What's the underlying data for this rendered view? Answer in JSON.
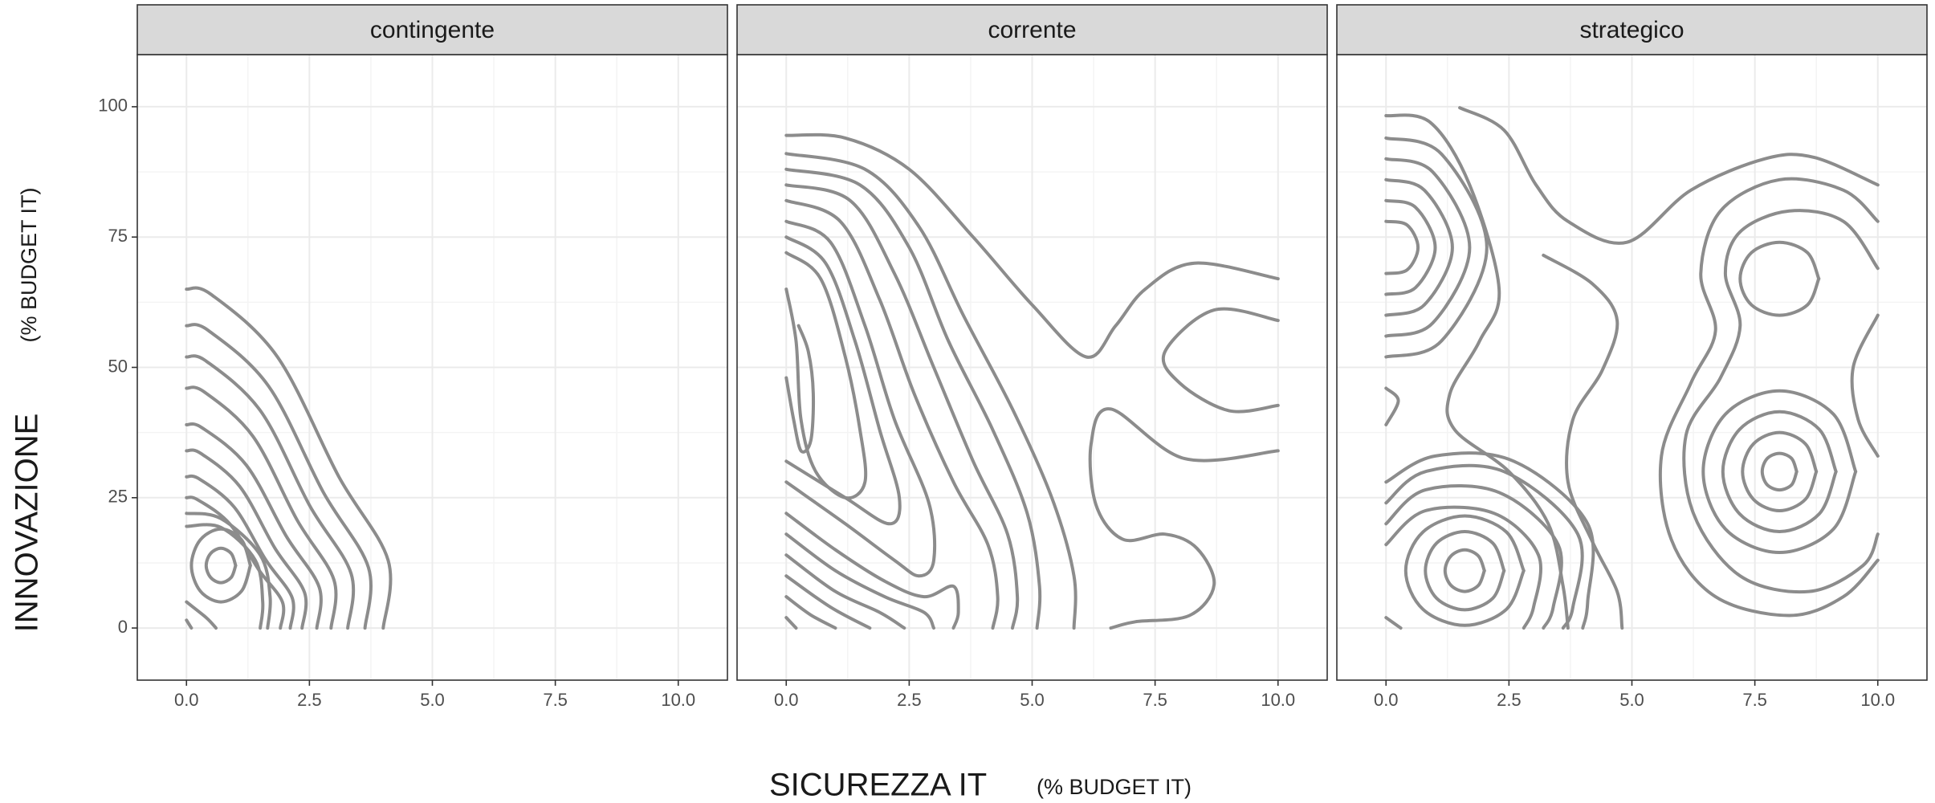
{
  "x_label": "SICUREZZA IT",
  "x_label_unit": "(% BUDGET IT)",
  "y_label": "INNOVAZIONE",
  "y_label_unit": "(% BUDGET IT)",
  "chart_data": [
    {
      "type": "contour",
      "title": "contingente",
      "color": "#8c8c8c",
      "grid": true,
      "xlim": [
        -1,
        11
      ],
      "ylim": [
        -10,
        110
      ],
      "xticks": [
        {
          "value": 0,
          "label": "0.0"
        },
        {
          "value": 2.5,
          "label": "2.5"
        },
        {
          "value": 5,
          "label": "5.0"
        },
        {
          "value": 7.5,
          "label": "7.5"
        },
        {
          "value": 10,
          "label": "10.0"
        }
      ],
      "yticks": [
        0,
        25,
        50,
        75,
        100
      ],
      "x_minor_ticks": [
        1.25,
        3.75,
        6.25,
        8.75
      ],
      "y_minor_ticks": [
        12.5,
        37.5,
        62.5,
        87.5
      ],
      "lines": [
        {
          "x": [
            0,
            0.5,
            1.85,
            3.1,
            4.1,
            4.0
          ],
          "y": [
            65,
            64,
            52,
            29,
            13,
            0
          ]
        },
        {
          "x": [
            0,
            0.44,
            1.67,
            2.78,
            3.7,
            3.63
          ],
          "y": [
            58,
            57.1,
            46.4,
            26.1,
            11.6,
            0
          ]
        },
        {
          "x": [
            0,
            0.4,
            1.51,
            2.51,
            3.35,
            3.28
          ],
          "y": [
            52,
            51.2,
            41.6,
            23.4,
            10.4,
            0
          ]
        },
        {
          "x": [
            0,
            0.36,
            1.35,
            2.25,
            3.0,
            2.94
          ],
          "y": [
            46,
            45.3,
            36.8,
            20.7,
            9.2,
            0
          ]
        },
        {
          "x": [
            0,
            0.32,
            1.22,
            2.03,
            2.7,
            2.65
          ],
          "y": [
            39,
            38.4,
            31.2,
            17.6,
            7.8,
            0
          ]
        },
        {
          "x": [
            0,
            0.29,
            1.08,
            1.8,
            2.4,
            2.35
          ],
          "y": [
            34,
            33.5,
            27.2,
            15.3,
            6.8,
            0
          ]
        },
        {
          "x": [
            0,
            0.26,
            0.97,
            1.61,
            2.15,
            2.11
          ],
          "y": [
            29,
            28.6,
            23.2,
            13.1,
            5.8,
            0
          ]
        },
        {
          "x": [
            0,
            0.23,
            0.88,
            1.46,
            1.95,
            1.91
          ],
          "y": [
            25,
            24.6,
            20,
            11.3,
            5,
            0
          ]
        },
        {
          "x": [
            0,
            0.7,
            1.5,
            1.7,
            1.65
          ],
          "y": [
            22,
            21,
            14,
            6,
            0
          ]
        },
        {
          "x": [
            0,
            0.7,
            1.4,
            1.55,
            1.5
          ],
          "y": [
            19.5,
            19.3,
            13,
            5,
            0
          ]
        },
        {
          "x": [
            0,
            0.4,
            0.6
          ],
          "y": [
            5,
            2,
            0
          ]
        },
        {
          "x": [
            0,
            0.1
          ],
          "y": [
            1.5,
            0
          ]
        },
        {
          "x": [
            1.3,
            1.12,
            0.7,
            0.28,
            0.1,
            0.28,
            0.7,
            1.12,
            1.3
          ],
          "y": [
            12,
            16.9,
            19,
            16.9,
            12,
            7.1,
            5,
            7.1,
            12
          ]
        },
        {
          "x": [
            1.0,
            0.91,
            0.7,
            0.49,
            0.4,
            0.49,
            0.7,
            0.91,
            1.0
          ],
          "y": [
            12,
            14.3,
            15.3,
            14.3,
            12,
            9.7,
            8.7,
            9.7,
            12
          ]
        }
      ]
    },
    {
      "type": "contour",
      "title": "corrente",
      "color": "#8c8c8c",
      "grid": true,
      "xlim": [
        -1,
        11
      ],
      "ylim": [
        -10,
        110
      ],
      "xticks": [
        {
          "value": 0,
          "label": "0.0"
        },
        {
          "value": 2.5,
          "label": "2.5"
        },
        {
          "value": 5,
          "label": "5.0"
        },
        {
          "value": 7.5,
          "label": "7.5"
        },
        {
          "value": 10,
          "label": "10.0"
        }
      ],
      "yticks": [
        0,
        25,
        50,
        75,
        100
      ],
      "x_minor_ticks": [
        1.25,
        3.75,
        6.25,
        8.75
      ],
      "y_minor_ticks": [
        12.5,
        37.5,
        62.5,
        87.5
      ],
      "lines": [
        {
          "x": [
            0,
            1.2,
            2.5,
            3.8,
            5,
            6.1,
            6.7,
            7.3,
            8.3,
            10
          ],
          "y": [
            94.5,
            94,
            88,
            75,
            62,
            52,
            58,
            65,
            70,
            67
          ]
        },
        {
          "x": [
            10,
            8.1,
            6.6,
            6.2,
            6.3,
            6.85,
            7.7,
            8.35,
            8.7,
            8.2,
            7.1,
            6.6
          ],
          "y": [
            34,
            32.5,
            42,
            35.4,
            23.6,
            17,
            18,
            15.3,
            8.3,
            2.4,
            1.2,
            0
          ]
        },
        {
          "x": [
            10,
            8.7,
            7.7,
            8,
            9,
            10
          ],
          "y": [
            59,
            61,
            53,
            47,
            41.7,
            42.7
          ]
        },
        {
          "x": [
            0,
            1.6,
            2.7,
            3.6,
            4.6,
            5.4,
            5.85,
            5.85
          ],
          "y": [
            91,
            88,
            77,
            60,
            42,
            25,
            10,
            0
          ]
        },
        {
          "x": [
            0,
            1.5,
            2.5,
            3.3,
            4.2,
            4.9,
            5.15,
            5.1
          ],
          "y": [
            88,
            85,
            73,
            55,
            38,
            22,
            8,
            0
          ]
        },
        {
          "x": [
            0,
            1.3,
            2.2,
            3,
            3.8,
            4.5,
            4.7,
            4.6
          ],
          "y": [
            85,
            82,
            68,
            50,
            32,
            18,
            6,
            0
          ]
        },
        {
          "x": [
            0,
            1.1,
            1.9,
            2.6,
            3.4,
            4.1,
            4.3,
            4.2
          ],
          "y": [
            82,
            78,
            63,
            45,
            28,
            16,
            6,
            0
          ]
        },
        {
          "x": [
            0,
            0.9,
            1.6,
            2.2,
            2.9,
            3.0,
            2.7,
            2.2,
            1.2,
            0
          ],
          "y": [
            78,
            74,
            58,
            40,
            24,
            13,
            10,
            13,
            20,
            28
          ]
        },
        {
          "x": [
            0,
            0.8,
            1.4,
            1.9,
            2.3,
            2.1,
            1.2,
            0
          ],
          "y": [
            75,
            70,
            55,
            38,
            25,
            20,
            25,
            32
          ]
        },
        {
          "x": [
            0,
            0.7,
            1.2,
            1.5,
            1.6,
            1.2,
            0.6,
            0.3,
            0.2,
            0
          ],
          "y": [
            72,
            67,
            52,
            38,
            28,
            25,
            30,
            40,
            55,
            65
          ]
        },
        {
          "x": [
            0,
            0.15,
            0.3,
            0.5,
            0.55,
            0.45,
            0.25
          ],
          "y": [
            48,
            40,
            34,
            36,
            45,
            53,
            58
          ]
        },
        {
          "x": [
            0,
            1,
            2,
            2.8,
            3.4,
            3.5,
            3.4
          ],
          "y": [
            22,
            15,
            9,
            6,
            8,
            3,
            0
          ]
        },
        {
          "x": [
            0,
            1,
            2,
            2.8,
            3
          ],
          "y": [
            18,
            11,
            6,
            3,
            0
          ]
        },
        {
          "x": [
            0,
            1,
            1.9,
            2.4
          ],
          "y": [
            14,
            7,
            3,
            0
          ]
        },
        {
          "x": [
            0,
            0.9,
            1.7
          ],
          "y": [
            10,
            4,
            0
          ]
        },
        {
          "x": [
            0,
            0.5,
            1
          ],
          "y": [
            6,
            2.5,
            0
          ]
        },
        {
          "x": [
            0,
            0.2
          ],
          "y": [
            2,
            0
          ]
        }
      ]
    },
    {
      "type": "contour",
      "title": "strategico",
      "color": "#8c8c8c",
      "grid": true,
      "xlim": [
        -1,
        11
      ],
      "ylim": [
        -10,
        110
      ],
      "xticks": [
        {
          "value": 0,
          "label": "0.0"
        },
        {
          "value": 2.5,
          "label": "2.5"
        },
        {
          "value": 5,
          "label": "5.0"
        },
        {
          "value": 7.5,
          "label": "7.5"
        },
        {
          "value": 10,
          "label": "10.0"
        }
      ],
      "yticks": [
        0,
        25,
        50,
        75,
        100
      ],
      "x_minor_ticks": [
        1.25,
        3.75,
        6.25,
        8.75
      ],
      "y_minor_ticks": [
        12.5,
        37.5,
        62.5,
        87.5
      ],
      "lines": [
        {
          "x": [
            1.5,
            2.4,
            3.05,
            3.7,
            4.9,
            6.2,
            7.7,
            8.7,
            10
          ],
          "y": [
            99.8,
            95.5,
            85,
            78,
            74,
            84,
            90,
            90.3,
            85
          ]
        },
        {
          "x": [
            0,
            0.9,
            1.7,
            2.3,
            1.9,
            1.3,
            1.4,
            2.5,
            3.3,
            3.6,
            3.7
          ],
          "y": [
            98.3,
            97,
            85,
            65,
            55,
            45,
            38,
            30,
            20,
            8,
            0
          ]
        },
        {
          "x": [
            3.2,
            4.2,
            4.7,
            4.4,
            3.8,
            3.7,
            4.2,
            4.7,
            4.8
          ],
          "y": [
            71.5,
            66,
            59,
            49.5,
            40,
            28,
            16.5,
            7,
            0
          ]
        },
        {
          "x": [
            10,
            9.3,
            8,
            6.8,
            6.4,
            6.7,
            6.2,
            5.6,
            5.8,
            6.7,
            8.2,
            9.3,
            10
          ],
          "y": [
            78,
            84,
            86,
            80,
            68,
            57,
            47,
            33,
            17,
            6,
            2.4,
            6,
            13
          ]
        },
        {
          "x": [
            10,
            9.3,
            8.2,
            7.2,
            6.9,
            7.2,
            6.8,
            6.1,
            6.25,
            7.2,
            8.6,
            9.7,
            10
          ],
          "y": [
            69,
            78,
            80,
            76,
            68,
            58,
            48,
            37,
            22,
            10,
            7,
            12,
            18
          ]
        },
        {
          "x": [
            10,
            9.5,
            9.6,
            10
          ],
          "y": [
            60,
            50,
            40,
            33
          ]
        },
        {
          "x": [
            8.8,
            8.57,
            8,
            7.43,
            7.2,
            7.43,
            8,
            8.57,
            8.8
          ],
          "y": [
            67,
            72,
            74,
            72,
            67,
            62,
            60,
            62,
            67
          ]
        },
        {
          "x": [
            8.35,
            8.25,
            8,
            7.75,
            7.65,
            7.75,
            8,
            8.25,
            8.35
          ],
          "y": [
            30,
            32.5,
            33.5,
            32.5,
            30,
            27.5,
            26.5,
            27.5,
            30
          ]
        },
        {
          "x": [
            8.75,
            8.53,
            8,
            7.47,
            7.25,
            7.47,
            8,
            8.53,
            8.75
          ],
          "y": [
            30,
            35.3,
            37.5,
            35.3,
            30,
            24.7,
            22.5,
            24.7,
            30
          ]
        },
        {
          "x": [
            9.15,
            8.81,
            8,
            7.19,
            6.85,
            7.19,
            8,
            8.81,
            9.15
          ],
          "y": [
            30,
            38.1,
            41.5,
            38.1,
            30,
            21.9,
            18.5,
            21.9,
            30
          ]
        },
        {
          "x": [
            9.55,
            9.1,
            8,
            6.9,
            6.45,
            6.9,
            8,
            9.1,
            9.55
          ],
          "y": [
            30,
            41,
            45.5,
            41,
            30,
            19,
            14.5,
            19,
            30
          ]
        },
        {
          "x": [
            0,
            0.43,
            0.65,
            0.43,
            0
          ],
          "y": [
            78,
            77.3,
            73,
            68.7,
            68
          ]
        },
        {
          "x": [
            0,
            0.6,
            1.0,
            0.6,
            0
          ],
          "y": [
            82,
            80.7,
            73,
            65.3,
            64
          ]
        },
        {
          "x": [
            0,
            0.78,
            1.35,
            0.78,
            0
          ],
          "y": [
            86,
            84,
            73,
            62,
            60
          ]
        },
        {
          "x": [
            0,
            0.95,
            1.7,
            0.95,
            0
          ],
          "y": [
            90,
            87.5,
            73,
            58.5,
            56
          ]
        },
        {
          "x": [
            0,
            1.13,
            2.05,
            1.13,
            0
          ],
          "y": [
            94,
            90.9,
            73,
            55.1,
            52
          ]
        },
        {
          "x": [
            2.0,
            1.88,
            1.6,
            1.32,
            1.2,
            1.32,
            1.6,
            1.88,
            2.0
          ],
          "y": [
            11,
            13.8,
            15,
            13.8,
            11,
            8.2,
            7,
            8.2,
            11
          ]
        },
        {
          "x": [
            2.4,
            2.17,
            1.6,
            1.03,
            0.8,
            1.03,
            1.6,
            2.17,
            2.4
          ],
          "y": [
            11,
            16.3,
            18.5,
            16.3,
            11,
            5.7,
            3.5,
            5.7,
            11
          ]
        },
        {
          "x": [
            2.8,
            2.45,
            1.6,
            0.75,
            0.4,
            0.75,
            1.6,
            2.45,
            2.8
          ],
          "y": [
            11,
            18.4,
            21.5,
            18.4,
            11,
            3.6,
            0.5,
            3.6,
            11
          ]
        },
        {
          "x": [
            0,
            0.8,
            2.2,
            3.1,
            3.0,
            2.8
          ],
          "y": [
            16,
            22.5,
            22,
            14,
            4,
            0
          ]
        },
        {
          "x": [
            0,
            0.8,
            2.3,
            3.5,
            3.4,
            3.2
          ],
          "y": [
            20,
            26.5,
            26,
            16,
            4,
            0
          ]
        },
        {
          "x": [
            0,
            0.8,
            2.4,
            3.9,
            3.8,
            3.6
          ],
          "y": [
            24,
            30,
            30,
            18,
            4,
            0
          ]
        },
        {
          "x": [
            0,
            1.0,
            2.6,
            4.1,
            4.1,
            4.0
          ],
          "y": [
            28,
            33,
            32,
            20,
            5,
            0
          ]
        },
        {
          "x": [
            0,
            0.3
          ],
          "y": [
            2,
            0
          ]
        },
        {
          "x": [
            0,
            0.25,
            0
          ],
          "y": [
            46,
            43.6,
            39
          ]
        }
      ]
    }
  ]
}
